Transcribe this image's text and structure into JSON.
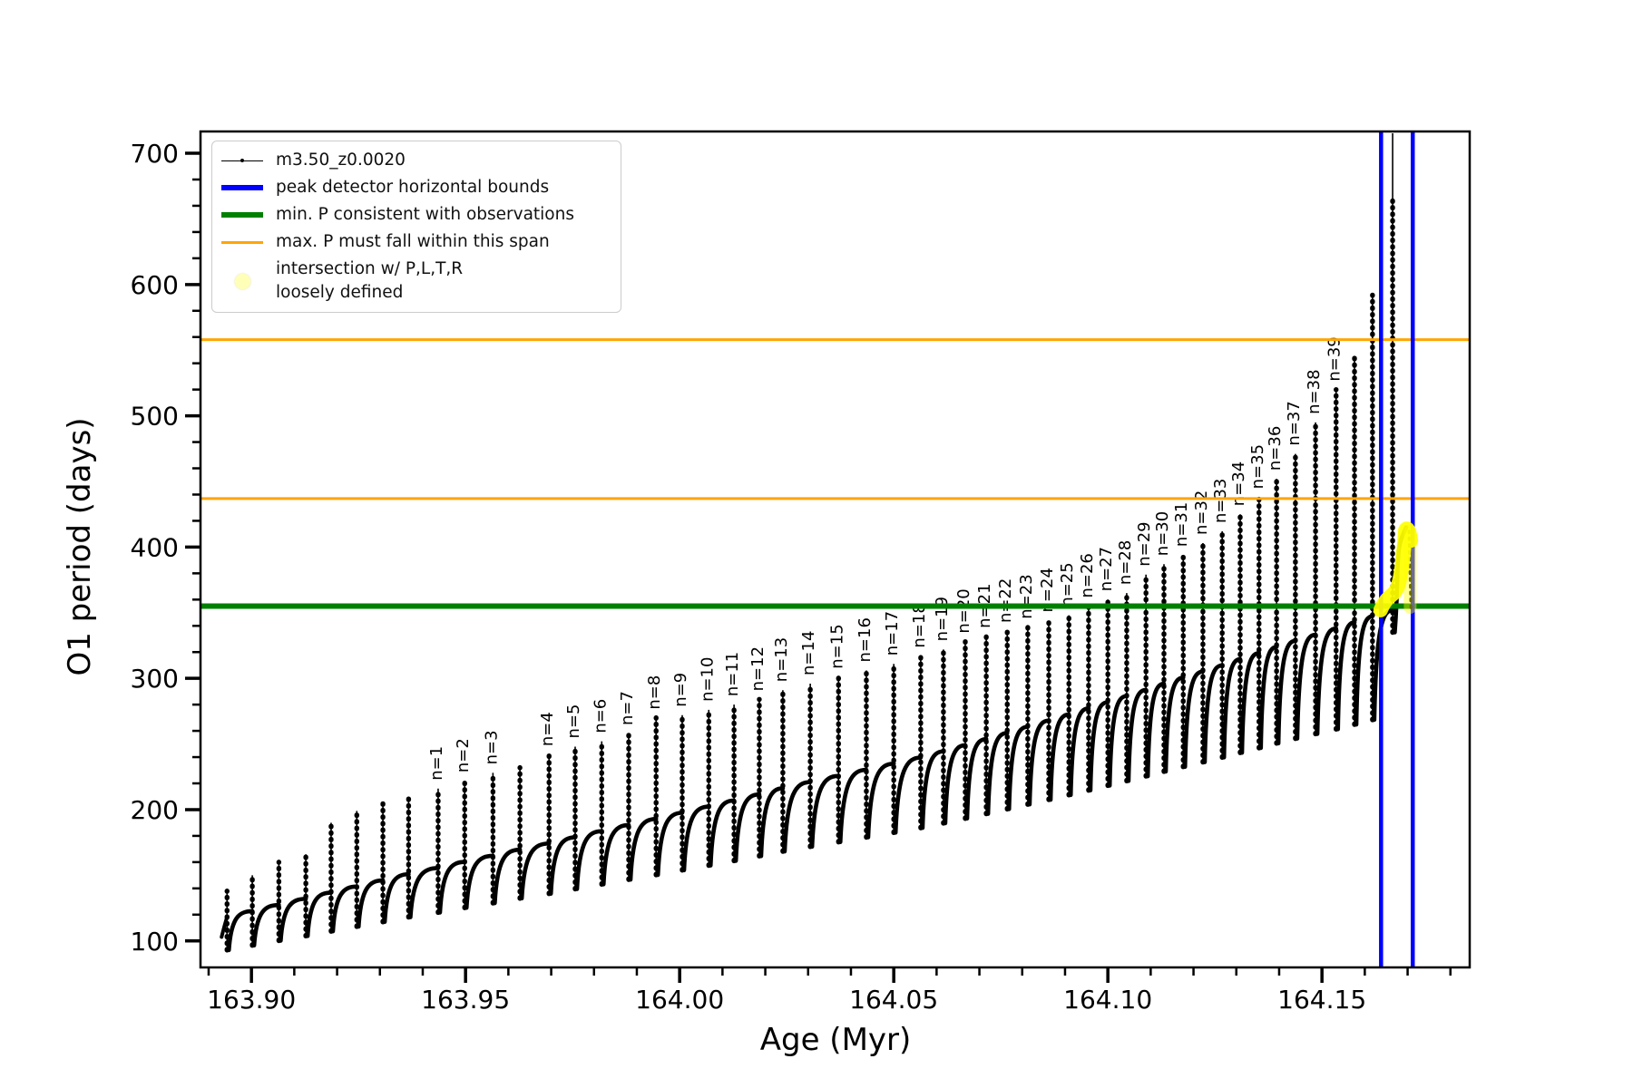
{
  "figure": {
    "xlabel": "Age (Myr)",
    "ylabel": "O1 period (days)"
  },
  "legend": {
    "entries": [
      {
        "label": "m3.50_z0.0020",
        "type": "line-with-dot-marker",
        "color": "#000000"
      },
      {
        "label": "peak detector horizontal bounds",
        "type": "thick-line",
        "color": "#0000ff"
      },
      {
        "label": "min. P consistent with observations",
        "type": "thick-line",
        "color": "#008000"
      },
      {
        "label": "max. P must fall within this span",
        "type": "line",
        "color": "#ffa500"
      },
      {
        "label": "intersection w/ P,L,T,R\nloosely defined",
        "type": "circle-marker",
        "color": "#ffff00"
      }
    ]
  },
  "chart_data": {
    "type": "line",
    "title": "",
    "xlabel": "Age (Myr)",
    "ylabel": "O1 period (days)",
    "xlim": [
      163.8881,
      164.1845
    ],
    "ylim": [
      79.8,
      716.6
    ],
    "x_ticks": [
      163.9,
      163.95,
      164.0,
      164.05,
      164.1,
      164.15
    ],
    "x_minor_step": 0.01,
    "y_ticks": [
      100,
      200,
      300,
      400,
      500,
      600,
      700
    ],
    "y_minor_step": 20,
    "grid": false,
    "legend_position": "upper left",
    "series_label": "m3.50_z0.0020",
    "colors": {
      "series": "#000000",
      "peak_bounds": "#0000ff",
      "min_p": "#008000",
      "max_p": "#ffa500",
      "intersection": "#ffff00"
    },
    "h_lines": {
      "orange_max_p_span": [
        558,
        437
      ],
      "green_min_p": [
        355
      ]
    },
    "v_lines": {
      "blue_peak_bounds": [
        164.1638,
        164.1712
      ]
    },
    "pulses": [
      {
        "a": 163.8943,
        "p": 138
      },
      {
        "a": 163.9002,
        "p": 150
      },
      {
        "a": 163.9064,
        "p": 160
      },
      {
        "a": 163.9127,
        "p": 166
      },
      {
        "a": 163.9186,
        "p": 190
      },
      {
        "a": 163.9246,
        "p": 199
      },
      {
        "a": 163.9307,
        "p": 205
      },
      {
        "a": 163.9367,
        "p": 210
      },
      {
        "a": 163.9436,
        "p": 216,
        "n": "n=1"
      },
      {
        "a": 163.9498,
        "p": 222,
        "n": "n=2"
      },
      {
        "a": 163.9564,
        "p": 228,
        "n": "n=3"
      },
      {
        "a": 163.9627,
        "p": 232
      },
      {
        "a": 163.9695,
        "p": 242,
        "n": "n=4"
      },
      {
        "a": 163.9756,
        "p": 248,
        "n": "n=5"
      },
      {
        "a": 163.9818,
        "p": 252,
        "n": "n=6"
      },
      {
        "a": 163.9881,
        "p": 258,
        "n": "n=7"
      },
      {
        "a": 163.9945,
        "p": 270,
        "n": "n=8"
      },
      {
        "a": 164.0006,
        "p": 272,
        "n": "n=9"
      },
      {
        "a": 164.0068,
        "p": 276,
        "n": "n=10"
      },
      {
        "a": 164.0127,
        "p": 280,
        "n": "n=11"
      },
      {
        "a": 164.0186,
        "p": 284,
        "n": "n=12"
      },
      {
        "a": 164.0241,
        "p": 291,
        "n": "n=13"
      },
      {
        "a": 164.0305,
        "p": 296,
        "n": "n=14"
      },
      {
        "a": 164.0371,
        "p": 301,
        "n": "n=15"
      },
      {
        "a": 164.0436,
        "p": 306,
        "n": "n=16"
      },
      {
        "a": 164.05,
        "p": 311,
        "n": "n=17"
      },
      {
        "a": 164.0563,
        "p": 317,
        "n": "n=18"
      },
      {
        "a": 164.0616,
        "p": 322,
        "n": "n=19"
      },
      {
        "a": 164.0667,
        "p": 328,
        "n": "n=20"
      },
      {
        "a": 164.0716,
        "p": 332,
        "n": "n=21"
      },
      {
        "a": 164.0765,
        "p": 336,
        "n": "n=22"
      },
      {
        "a": 164.0813,
        "p": 339,
        "n": "n=23"
      },
      {
        "a": 164.0862,
        "p": 344,
        "n": "n=24"
      },
      {
        "a": 164.0909,
        "p": 348,
        "n": "n=25"
      },
      {
        "a": 164.0955,
        "p": 355,
        "n": "n=26"
      },
      {
        "a": 164.1,
        "p": 360,
        "n": "n=27"
      },
      {
        "a": 164.1044,
        "p": 365,
        "n": "n=28"
      },
      {
        "a": 164.1089,
        "p": 379,
        "n": "n=29"
      },
      {
        "a": 164.1131,
        "p": 387,
        "n": "n=30"
      },
      {
        "a": 164.1176,
        "p": 394,
        "n": "n=31"
      },
      {
        "a": 164.1222,
        "p": 403,
        "n": "n=32"
      },
      {
        "a": 164.1267,
        "p": 412,
        "n": "n=33"
      },
      {
        "a": 164.1309,
        "p": 425,
        "n": "n=34"
      },
      {
        "a": 164.1353,
        "p": 438,
        "n": "n=35"
      },
      {
        "a": 164.1394,
        "p": 452,
        "n": "n=36"
      },
      {
        "a": 164.1438,
        "p": 471,
        "n": "n=37"
      },
      {
        "a": 164.1485,
        "p": 495,
        "n": "n=38"
      },
      {
        "a": 164.1533,
        "p": 520,
        "n": "n=39"
      },
      {
        "a": 164.1576,
        "p": 545
      },
      {
        "a": 164.1618,
        "p": 592
      },
      {
        "a": 164.1665,
        "p": 665,
        "giant": true
      }
    ],
    "final_branch": {
      "dip_age": 164.167,
      "dip": 335,
      "peak_age": 164.1697,
      "peak": 415,
      "end_age": 164.1708,
      "end": 352
    },
    "intersection_region": {
      "start_age": 164.1637,
      "start_p": 352,
      "peak_age": 164.1697,
      "peak_p": 413,
      "column_age": 164.1706,
      "column_top_p": 412,
      "column_bottom_p": 354
    }
  }
}
